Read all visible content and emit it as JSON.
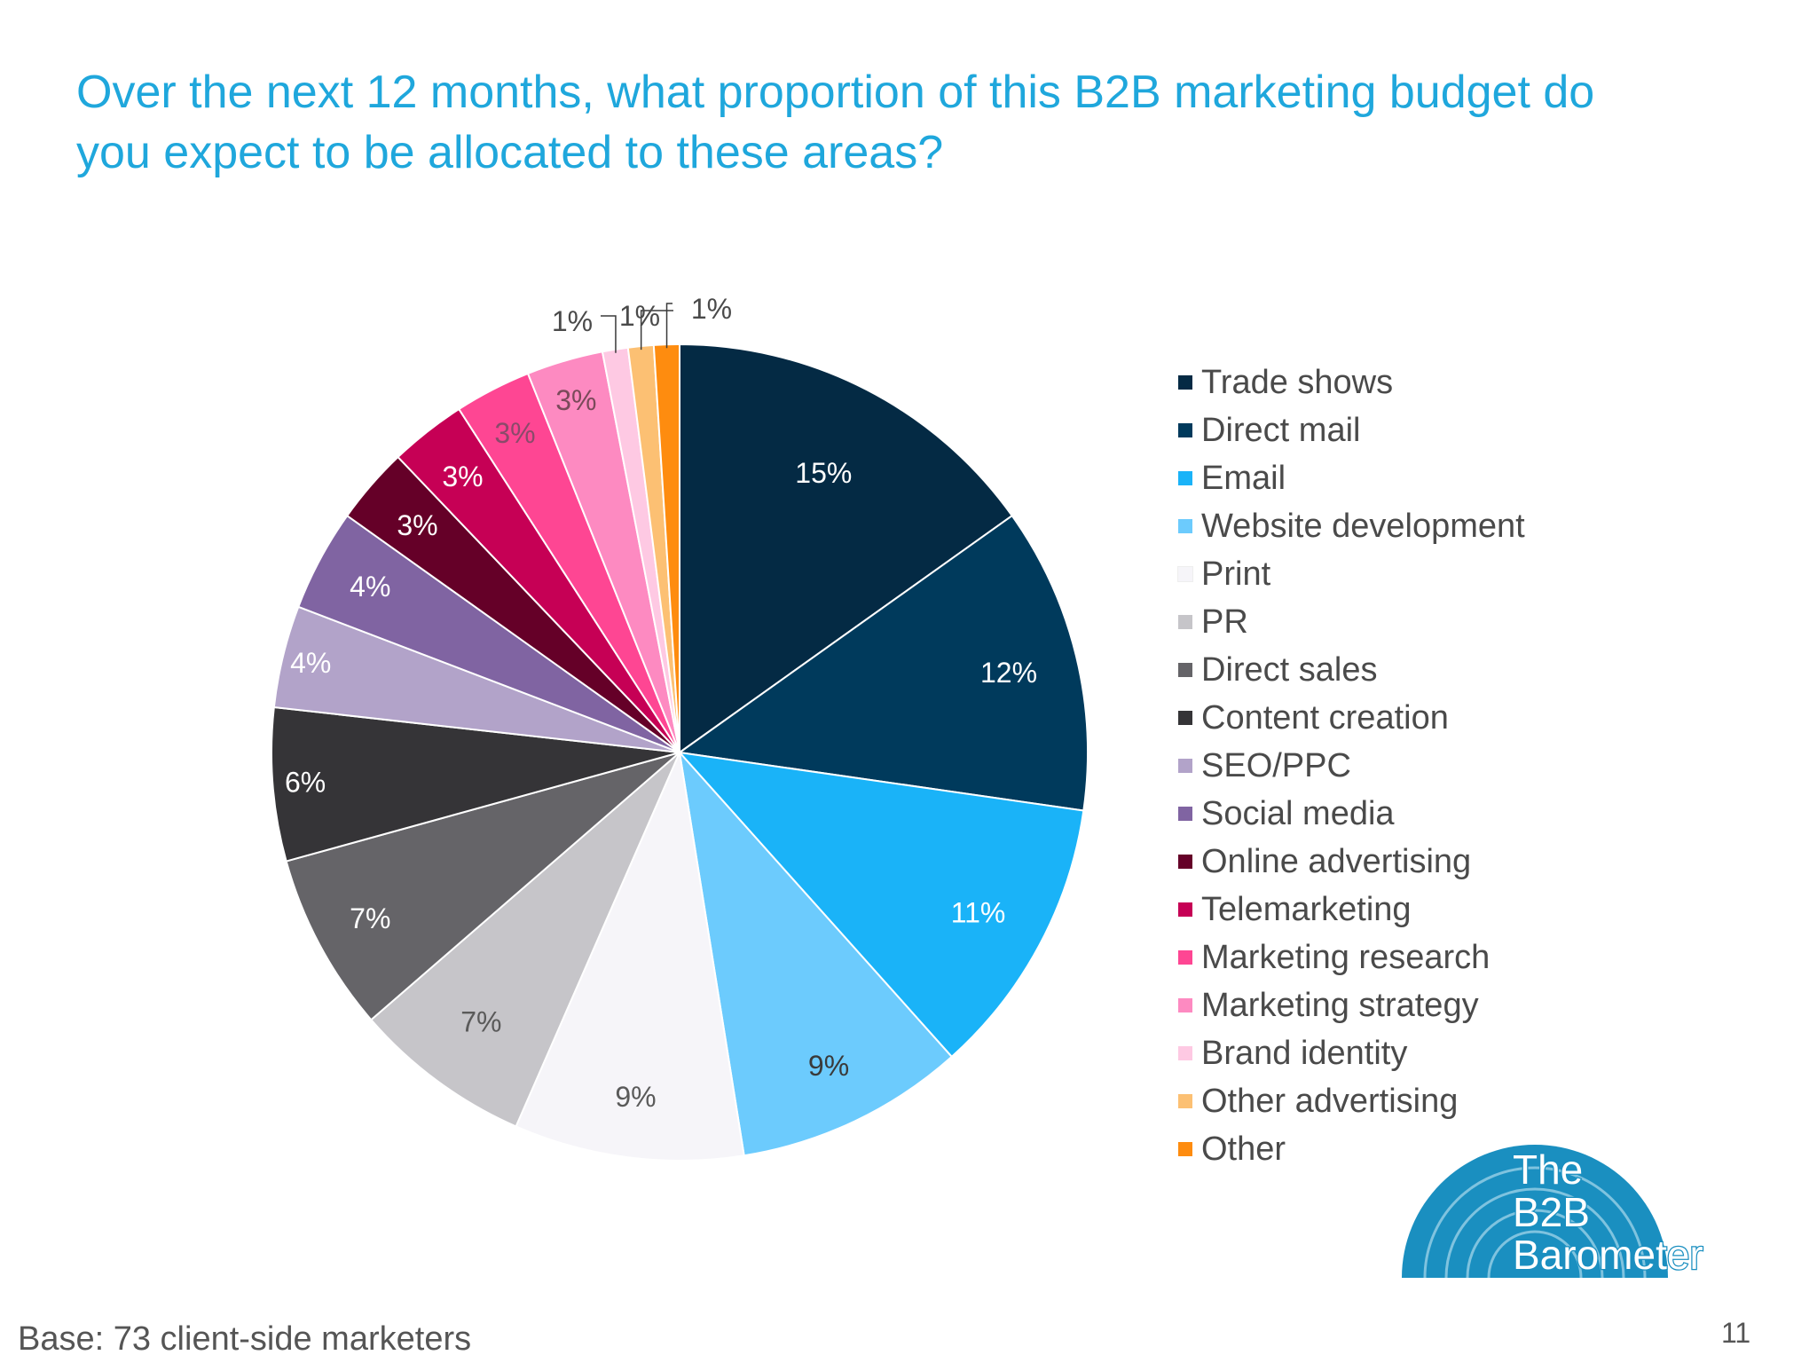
{
  "slide": {
    "title_line1": "Over the next 12 months, what proportion of this B2B marketing budget do",
    "title_line2": "you expect to be allocated to these areas?",
    "base_note": "Base: 73 client-side marketers",
    "page_number": "11"
  },
  "logo": {
    "line1": "The",
    "line2": "B2B",
    "line3": "Barometer",
    "color": "#1a8fc0"
  },
  "chart_data": {
    "type": "pie",
    "title": "Over the next 12 months, what proportion of this B2B marketing budget do you expect to be allocated to these areas?",
    "legend_position": "right",
    "slices": [
      {
        "name": "Trade shows",
        "value": 15,
        "label": "15%",
        "color": "#042a44"
      },
      {
        "name": "Direct mail",
        "value": 12,
        "label": "12%",
        "color": "#003a5c"
      },
      {
        "name": "Email",
        "value": 11,
        "label": "11%",
        "color": "#1ab3f8"
      },
      {
        "name": "Website development",
        "value": 9,
        "label": "9%",
        "color": "#6ccbfd"
      },
      {
        "name": "Print",
        "value": 9,
        "label": "9%",
        "color": "#f6f5f9"
      },
      {
        "name": "PR",
        "value": 7,
        "label": "7%",
        "color": "#c6c5c9"
      },
      {
        "name": "Direct sales",
        "value": 7,
        "label": "7%",
        "color": "#656468"
      },
      {
        "name": "Content creation",
        "value": 6,
        "label": "6%",
        "color": "#353437"
      },
      {
        "name": "SEO/PPC",
        "value": 4,
        "label": "4%",
        "color": "#b2a3c9"
      },
      {
        "name": "Social media",
        "value": 4,
        "label": "4%",
        "color": "#8064a2"
      },
      {
        "name": "Online advertising",
        "value": 3,
        "label": "3%",
        "color": "#650028"
      },
      {
        "name": "Telemarketing",
        "value": 3,
        "label": "3%",
        "color": "#c60055"
      },
      {
        "name": "Marketing research",
        "value": 3,
        "label": "3%",
        "color": "#fe4693"
      },
      {
        "name": "Marketing strategy",
        "value": 3,
        "label": "3%",
        "color": "#fd8ac1"
      },
      {
        "name": "Brand identity",
        "value": 1,
        "label": "1%",
        "color": "#fec9e3"
      },
      {
        "name": "Other advertising",
        "value": 1,
        "label": "1%",
        "color": "#fcc073"
      },
      {
        "name": "Other",
        "value": 1,
        "label": "1%",
        "color": "#fe8c0f"
      }
    ]
  }
}
